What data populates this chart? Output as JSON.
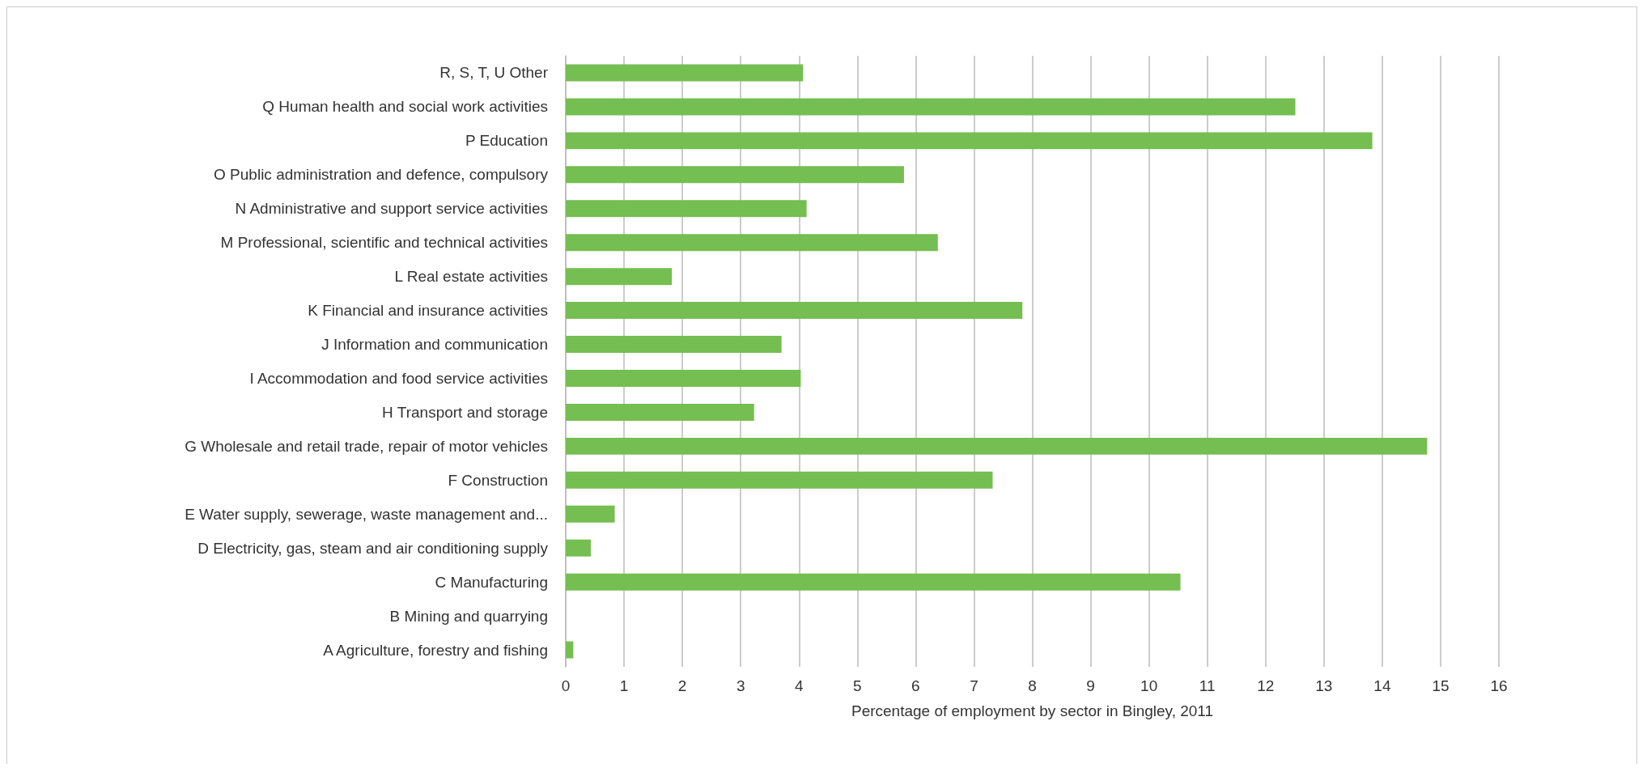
{
  "chart_data": {
    "type": "bar",
    "orientation": "horizontal",
    "xlabel": "Percentage of employment by sector in Bingley, 2011",
    "categories": [
      "R, S, T, U Other",
      "Q Human health and social work activities",
      "P Education",
      "O Public administration and defence, compulsory",
      "N Administrative and support service activities",
      "M Professional, scientific and technical activities",
      "L Real estate activities",
      "K Financial and insurance activities",
      "J Information and communication",
      "I Accommodation and food service activities",
      "H Transport and storage",
      "G Wholesale and retail trade, repair of motor vehicles",
      "F Construction",
      "E Water supply, sewerage, waste management and...",
      "D Electricity, gas, steam and air conditioning supply",
      "C Manufacturing",
      "B Mining and quarrying",
      "A Agriculture, forestry and fishing"
    ],
    "values": [
      4.07,
      12.51,
      13.83,
      5.8,
      4.13,
      6.38,
      1.82,
      7.83,
      3.7,
      4.03,
      3.23,
      14.77,
      7.32,
      0.84,
      0.43,
      10.54,
      0,
      0.13
    ],
    "color": "#75be51",
    "xlim": [
      0,
      16
    ],
    "xticks": [
      0,
      1,
      2,
      3,
      4,
      5,
      6,
      7,
      8,
      9,
      10,
      11,
      12,
      13,
      14,
      15,
      16
    ],
    "grid": "x"
  }
}
